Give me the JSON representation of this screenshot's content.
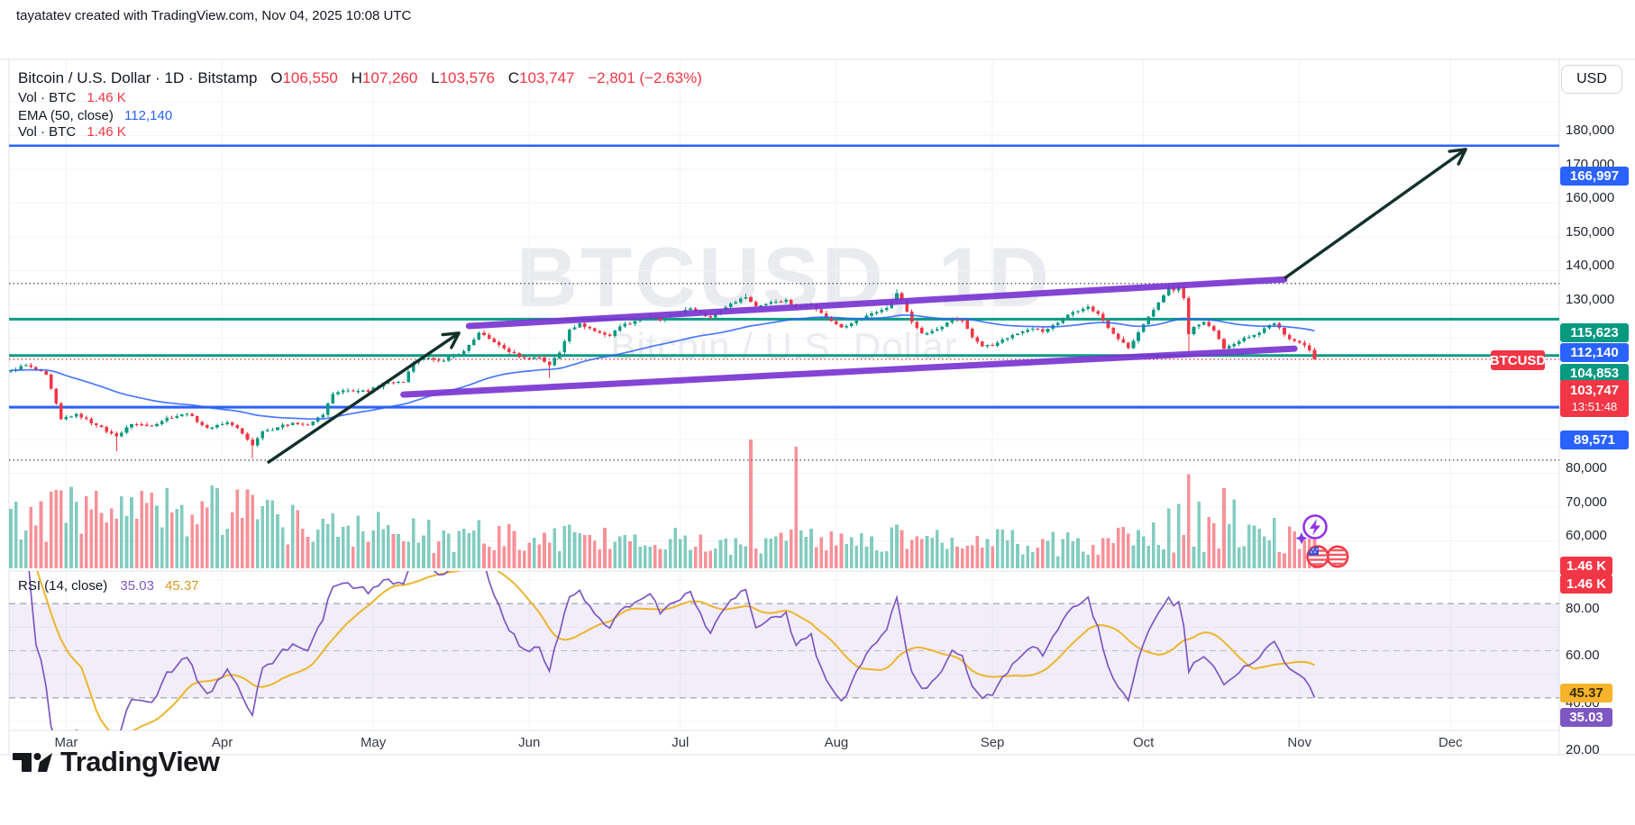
{
  "page": {
    "header_note": "tayatatev created with TradingView.com, Nov 04, 2025 10:08 UTC",
    "colors": {
      "up": "#089981",
      "down": "#f23645",
      "blue": "#2962ff",
      "teal_line": "#0a9a84",
      "purple_draw": "#7a36d2",
      "arrow": "#12302a",
      "rsi_line": "#7e57c2",
      "rsi_ma": "#edb52e",
      "grid": "#f1f3f8",
      "border": "#e0e3eb",
      "vol_up": "rgba(8,153,129,0.5)",
      "vol_down": "rgba(242,54,69,0.55)"
    }
  },
  "symbol_legend": {
    "title": "Bitcoin / U.S. Dollar · 1D · Bitstamp",
    "o_label": "O",
    "o": "106,550",
    "h_label": "H",
    "h": "107,260",
    "l_label": "L",
    "l": "103,576",
    "c_label": "C",
    "c": "103,747",
    "change": "−2,801 (−2.63%)"
  },
  "indicators": [
    {
      "label": "Vol · BTC",
      "value": "1.46 K",
      "color": "#f23645"
    },
    {
      "label": "EMA (50, close)",
      "value": "112,140",
      "color": "#2962ff"
    },
    {
      "label": "Vol · BTC",
      "value": "1.46 K",
      "color": "#f23645"
    }
  ],
  "rsi_legend": {
    "label": "RSI (14, close)",
    "value1": "35.03",
    "value2": "45.37"
  },
  "watermark": {
    "line1": "BTCUSD, 1D",
    "line2": "Bitcoin / U.S. Dollar"
  },
  "axis": {
    "currency": "USD",
    "price_ticks": [
      180000,
      170000,
      160000,
      150000,
      140000,
      130000,
      80000,
      70000,
      60000
    ],
    "rsi_ticks": [
      "80.00",
      "60.00",
      "40.00",
      "20.00"
    ],
    "months": [
      "Mar",
      "Apr",
      "May",
      "Jun",
      "Jul",
      "Aug",
      "Sep",
      "Oct",
      "Nov",
      "Dec"
    ]
  },
  "badges": [
    {
      "text": "166,997",
      "bg": "#2962ff"
    },
    {
      "text": "115,623",
      "bg": "#089981"
    },
    {
      "text": "112,140",
      "bg": "#2962ff"
    },
    {
      "text": "104,853",
      "bg": "#089981"
    },
    {
      "text": "103,747",
      "bg": "#f23645",
      "timer": "13:51:48"
    },
    {
      "text": "89,571",
      "bg": "#2962ff"
    },
    {
      "text": "1.46 K",
      "bg": "#f23645",
      "small": true
    },
    {
      "text": "1.46 K",
      "bg": "#f23645",
      "small": true
    },
    {
      "text": "45.37",
      "bg": "#f7b32b",
      "fg": "#3b2e00",
      "small": true
    },
    {
      "text": "35.03",
      "bg": "#7e57c2",
      "small": true
    }
  ],
  "price_tag": {
    "text": "BTCUSD"
  },
  "logo": {
    "text": "TradingView"
  },
  "chart_data": {
    "type": "candlestick",
    "symbol": "BTCUSD",
    "exchange": "Bitstamp",
    "timeframe": "1D",
    "title": "Bitcoin / U.S. Dollar",
    "visible_range": {
      "start": "2025-02-18",
      "end": "2025-12-31"
    },
    "last_candle": {
      "open": 106550,
      "high": 107260,
      "low": 103576,
      "close": 103747,
      "change": -2801,
      "change_pct": -2.63
    },
    "close_anchors": [
      [
        0,
        100500
      ],
      [
        3,
        102000
      ],
      [
        7,
        99200
      ],
      [
        10,
        86000
      ],
      [
        13,
        87600
      ],
      [
        17,
        84200
      ],
      [
        21,
        80900
      ],
      [
        24,
        84600
      ],
      [
        28,
        84000
      ],
      [
        31,
        86400
      ],
      [
        35,
        87600
      ],
      [
        39,
        83400
      ],
      [
        43,
        85100
      ],
      [
        45,
        83400
      ],
      [
        48,
        78300
      ],
      [
        50,
        82400
      ],
      [
        53,
        83600
      ],
      [
        56,
        84900
      ],
      [
        59,
        84300
      ],
      [
        62,
        87400
      ],
      [
        64,
        93500
      ],
      [
        67,
        94600
      ],
      [
        71,
        94100
      ],
      [
        74,
        96800
      ],
      [
        78,
        97000
      ],
      [
        80,
        102800
      ],
      [
        83,
        104200
      ],
      [
        86,
        103400
      ],
      [
        90,
        106200
      ],
      [
        93,
        111600
      ],
      [
        96,
        108800
      ],
      [
        99,
        105900
      ],
      [
        102,
        104100
      ],
      [
        105,
        104300
      ],
      [
        107,
        102000
      ],
      [
        109,
        105800
      ],
      [
        111,
        112600
      ],
      [
        113,
        114400
      ],
      [
        116,
        112100
      ],
      [
        119,
        110700
      ],
      [
        121,
        113500
      ],
      [
        124,
        115100
      ],
      [
        127,
        116700
      ],
      [
        129,
        115300
      ],
      [
        132,
        117100
      ],
      [
        135,
        118800
      ],
      [
        137,
        117500
      ],
      [
        139,
        116100
      ],
      [
        141,
        118300
      ],
      [
        143,
        120300
      ],
      [
        146,
        122100
      ],
      [
        148,
        119500
      ],
      [
        151,
        120700
      ],
      [
        154,
        121300
      ],
      [
        156,
        119100
      ],
      [
        159,
        120100
      ],
      [
        161,
        117400
      ],
      [
        163,
        115100
      ],
      [
        165,
        113200
      ],
      [
        167,
        114400
      ],
      [
        169,
        115800
      ],
      [
        171,
        117300
      ],
      [
        174,
        118900
      ],
      [
        176,
        123400
      ],
      [
        177,
        121200
      ],
      [
        179,
        114800
      ],
      [
        181,
        111400
      ],
      [
        183,
        112200
      ],
      [
        185,
        113400
      ],
      [
        187,
        115900
      ],
      [
        189,
        115200
      ],
      [
        191,
        110300
      ],
      [
        193,
        107600
      ],
      [
        195,
        107800
      ],
      [
        197,
        109600
      ],
      [
        200,
        111400
      ],
      [
        203,
        112800
      ],
      [
        205,
        111900
      ],
      [
        208,
        114600
      ],
      [
        211,
        117800
      ],
      [
        214,
        119400
      ],
      [
        216,
        117200
      ],
      [
        218,
        113100
      ],
      [
        220,
        109800
      ],
      [
        222,
        107100
      ],
      [
        224,
        111800
      ],
      [
        226,
        116400
      ],
      [
        228,
        120600
      ],
      [
        230,
        125200
      ],
      [
        231,
        124100
      ],
      [
        232,
        125300
      ],
      [
        233,
        121900
      ],
      [
        234,
        111200
      ],
      [
        235,
        113400
      ],
      [
        237,
        114800
      ],
      [
        239,
        112300
      ],
      [
        241,
        106900
      ],
      [
        243,
        108300
      ],
      [
        245,
        110200
      ],
      [
        247,
        110900
      ],
      [
        249,
        112900
      ],
      [
        251,
        114400
      ],
      [
        253,
        111000
      ],
      [
        255,
        109200
      ],
      [
        257,
        107900
      ],
      [
        258,
        106400
      ],
      [
        259,
        103747
      ]
    ],
    "wick_events": [
      {
        "i": 21,
        "low": 76600
      },
      {
        "i": 48,
        "low": 74400
      },
      {
        "i": 93,
        "high": 112050
      },
      {
        "i": 107,
        "low": 98300
      },
      {
        "i": 146,
        "high": 123200
      },
      {
        "i": 176,
        "high": 124500
      },
      {
        "i": 230,
        "high": 126200
      },
      {
        "i": 234,
        "low": 104900
      }
    ],
    "volume": {
      "unit": "K BTC",
      "last": 1.46,
      "base_profile": [
        [
          0,
          2.4
        ],
        [
          30,
          2.8
        ],
        [
          55,
          2.2
        ],
        [
          80,
          1.5
        ],
        [
          110,
          1.3
        ],
        [
          140,
          1.2
        ],
        [
          175,
          1.3
        ],
        [
          210,
          1.1
        ],
        [
          235,
          1.6
        ],
        [
          259,
          1.3
        ]
      ],
      "spikes": [
        [
          10,
          3.4
        ],
        [
          13,
          2.9
        ],
        [
          24,
          3.1
        ],
        [
          40,
          3.6
        ],
        [
          41,
          3.5
        ],
        [
          48,
          3.2
        ],
        [
          50,
          2.7
        ],
        [
          64,
          2.4
        ],
        [
          93,
          2.1
        ],
        [
          111,
          1.9
        ],
        [
          147,
          5.6
        ],
        [
          156,
          5.3
        ],
        [
          176,
          1.9
        ],
        [
          230,
          2.6
        ],
        [
          232,
          2.8
        ],
        [
          234,
          4.1
        ],
        [
          236,
          2.9
        ],
        [
          241,
          3.5
        ],
        [
          243,
          3.0
        ],
        [
          251,
          2.2
        ]
      ]
    },
    "ema": {
      "length": 50,
      "value": 112140
    },
    "rsi": {
      "length": 14,
      "value": 35.03,
      "ma_value": 45.37,
      "overbought": 70,
      "oversold": 30,
      "midline": 50
    },
    "levels": {
      "solid_lines": [
        {
          "price": 166997,
          "color": "#2962ff",
          "width": 2.5
        },
        {
          "price": 115623,
          "color": "#0a9a84",
          "width": 3
        },
        {
          "price": 104853,
          "color": "#0a9a84",
          "width": 3
        },
        {
          "price": 89571,
          "color": "#2962ff",
          "width": 3
        }
      ],
      "dotted_lines": [
        126200,
        73900
      ],
      "current_price_line": 103747
    },
    "drawings": {
      "trend_channel": {
        "upper": [
          [
            91,
            113600
          ],
          [
            253,
            127400
          ]
        ],
        "lower": [
          [
            78,
            93300
          ],
          [
            255,
            106900
          ]
        ]
      },
      "arrows": [
        {
          "from": [
            51,
            73100
          ],
          "to": [
            89,
            111500
          ]
        },
        {
          "from": [
            253,
            127700
          ],
          "to": [
            289,
            165900
          ]
        }
      ]
    }
  }
}
